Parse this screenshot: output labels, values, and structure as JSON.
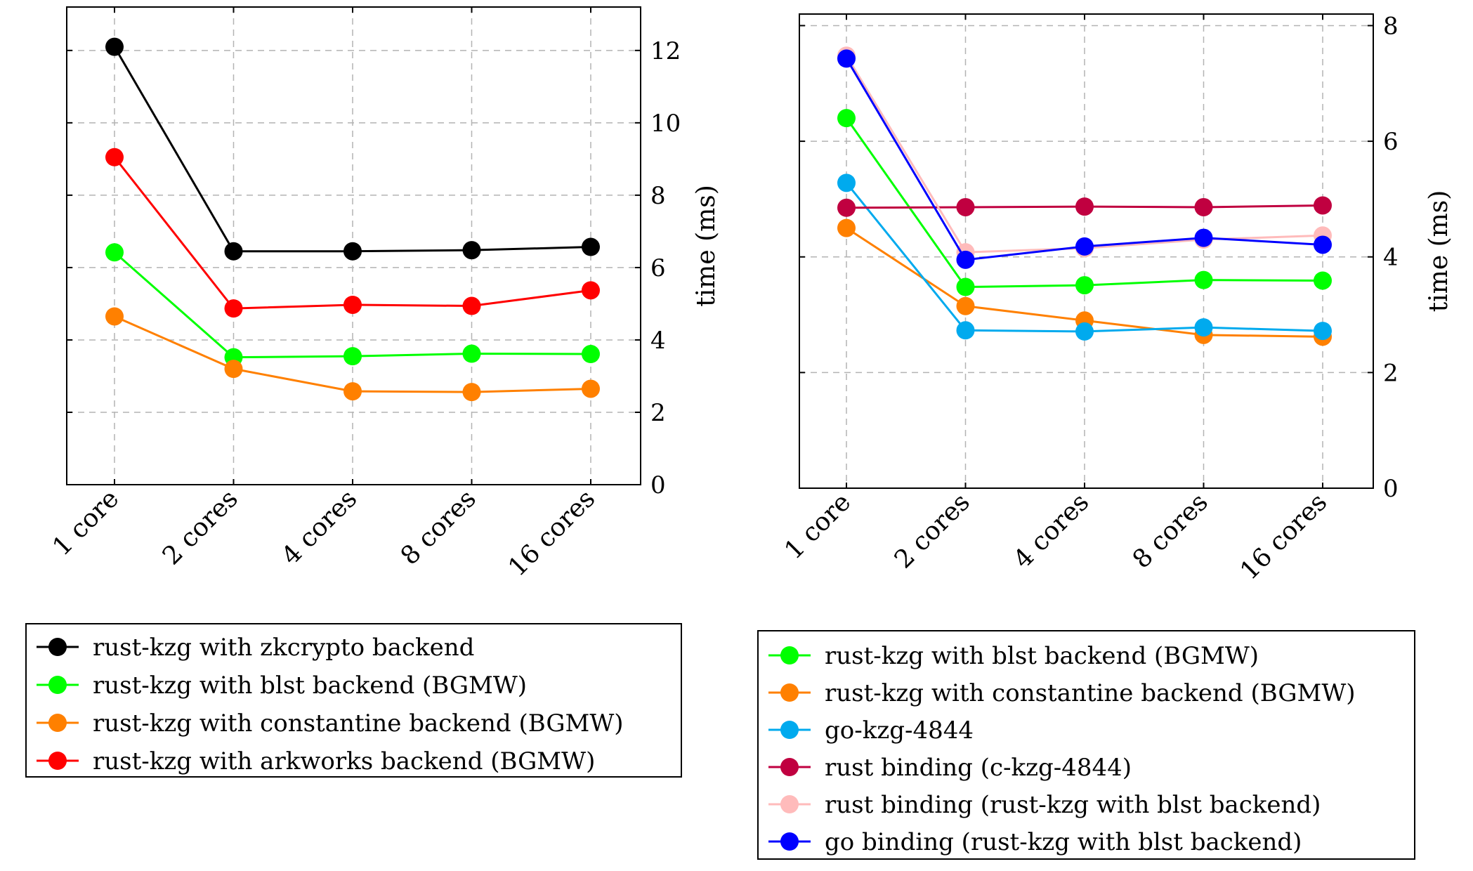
{
  "chart_data": [
    {
      "type": "line",
      "categories": [
        "1 core",
        "2 cores",
        "4 cores",
        "8 cores",
        "16 cores"
      ],
      "ylabel": "time (ms)",
      "ylim": [
        0,
        13.2
      ],
      "yticks": [
        0,
        2,
        4,
        6,
        8,
        10,
        12
      ],
      "grid": true,
      "axis_side": "right",
      "legend_position": "below",
      "series": [
        {
          "name": "rust-kzg with zkcrypto backend",
          "color": "#000000",
          "values": [
            12.1,
            6.45,
            6.45,
            6.48,
            6.57
          ]
        },
        {
          "name": "rust-kzg with blst backend (BGMW)",
          "color": "#00ff00",
          "values": [
            6.42,
            3.52,
            3.55,
            3.62,
            3.61
          ]
        },
        {
          "name": "rust-kzg with constantine backend (BGMW)",
          "color": "#ff8000",
          "values": [
            4.65,
            3.2,
            2.58,
            2.56,
            2.65
          ]
        },
        {
          "name": "rust-kzg with arkworks backend (BGMW)",
          "color": "#ff0000",
          "values": [
            9.05,
            4.87,
            4.97,
            4.94,
            5.37
          ]
        }
      ]
    },
    {
      "type": "line",
      "categories": [
        "1 core",
        "2 cores",
        "4 cores",
        "8 cores",
        "16 cores"
      ],
      "ylabel": "time (ms)",
      "ylim": [
        0,
        8.2
      ],
      "yticks": [
        0,
        2,
        4,
        6,
        8
      ],
      "grid": true,
      "axis_side": "right",
      "legend_position": "below",
      "series": [
        {
          "name": "rust-kzg with blst backend (BGMW)",
          "color": "#00ff00",
          "values": [
            6.4,
            3.48,
            3.51,
            3.6,
            3.59
          ]
        },
        {
          "name": "rust-kzg with constantine backend (BGMW)",
          "color": "#ff8000",
          "values": [
            4.5,
            3.15,
            2.9,
            2.65,
            2.62
          ]
        },
        {
          "name": "go-kzg-4844",
          "color": "#00aaee",
          "values": [
            5.28,
            2.73,
            2.71,
            2.78,
            2.72
          ]
        },
        {
          "name": "rust binding (c-kzg-4844)",
          "color": "#c00040",
          "values": [
            4.85,
            4.86,
            4.87,
            4.86,
            4.89
          ]
        },
        {
          "name": "rust binding (rust-kzg with blst backend)",
          "color": "#ffbbbb",
          "values": [
            7.48,
            4.08,
            4.15,
            4.3,
            4.37
          ]
        },
        {
          "name": "go binding (rust-kzg with blst backend)",
          "color": "#0000ff",
          "values": [
            7.43,
            3.95,
            4.18,
            4.33,
            4.21
          ]
        }
      ]
    }
  ]
}
